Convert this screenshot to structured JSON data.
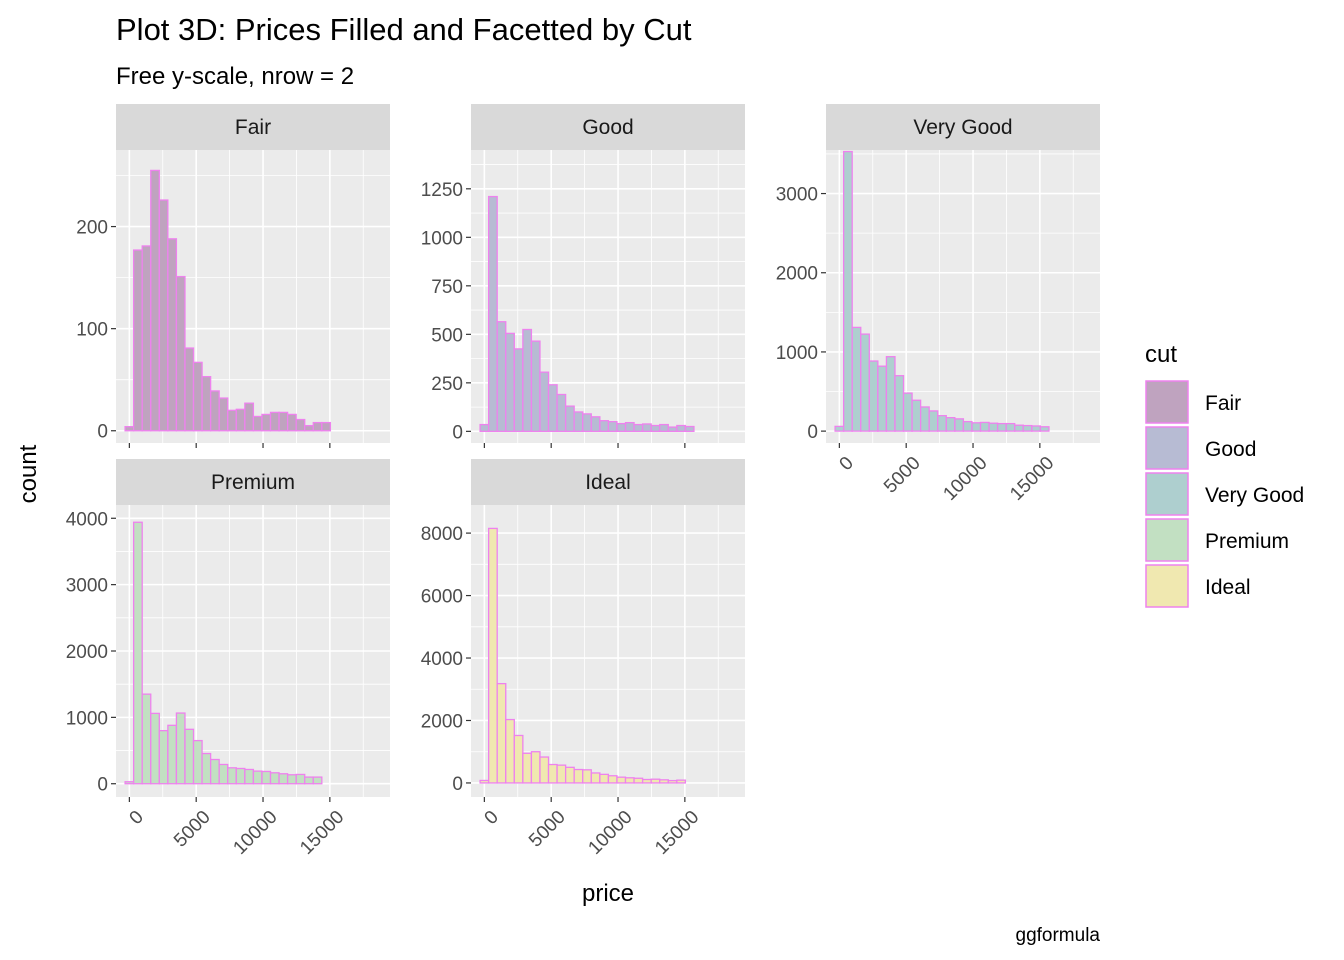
{
  "chart_data": {
    "type": "bar",
    "title": "Plot 3D: Prices Filled and Facetted by Cut",
    "subtitle": "Free y-scale, nrow = 2",
    "xlabel": "price",
    "ylabel": "count",
    "caption": "ggformula",
    "grid": true,
    "legend_position": "right",
    "bar_outline_color": "#ee82ee",
    "panel_background": "#ebebeb",
    "strip_background": "#d9d9d9",
    "xlim": [
      -1000,
      19500
    ],
    "x_ticks": [
      0,
      5000,
      10000,
      15000
    ],
    "x_tick_labels": [
      "0",
      "5000",
      "10000",
      "15000"
    ],
    "bin_centers": [
      0,
      640,
      1280,
      1920,
      2560,
      3200,
      3840,
      4480,
      5120,
      5760,
      6400,
      7040,
      7680,
      8320,
      8960,
      9600,
      10240,
      10880,
      11520,
      12160,
      12800,
      13440,
      14080,
      14720,
      15360,
      16000,
      16640,
      17280,
      17920,
      18560
    ],
    "legend": {
      "title": "cut",
      "entries": [
        {
          "label": "Fair",
          "color": "#bfa3bf"
        },
        {
          "label": "Good",
          "color": "#b7bbd3"
        },
        {
          "label": "Very Good",
          "color": "#aecfcf"
        },
        {
          "label": "Premium",
          "color": "#c2e0c2"
        },
        {
          "label": "Ideal",
          "color": "#f0e8b0"
        }
      ]
    },
    "panels": [
      {
        "name": "Fair",
        "color": "#bfa3bf",
        "ylim": [
          -12,
          275
        ],
        "y_ticks": [
          0,
          100,
          200
        ],
        "y_tick_labels": [
          "0",
          "100",
          "200"
        ],
        "values": [
          4,
          177,
          181,
          255,
          226,
          188,
          151,
          81,
          67,
          53,
          39,
          32,
          20,
          21,
          27,
          14,
          16,
          18,
          18,
          16,
          11,
          5,
          8,
          8,
          0,
          0,
          0,
          0,
          0,
          0
        ]
      },
      {
        "name": "Good",
        "color": "#b7bbd3",
        "ylim": [
          -60,
          1450
        ],
        "y_ticks": [
          0,
          250,
          500,
          750,
          1000,
          1250
        ],
        "y_tick_labels": [
          "0",
          "250",
          "500",
          "750",
          "1000",
          "1250"
        ],
        "values": [
          35,
          1210,
          565,
          505,
          425,
          525,
          465,
          305,
          240,
          190,
          130,
          100,
          90,
          75,
          55,
          50,
          40,
          45,
          35,
          38,
          30,
          35,
          22,
          30,
          25,
          0,
          0,
          0,
          0,
          0
        ]
      },
      {
        "name": "Very Good",
        "color": "#aecfcf",
        "ylim": [
          -150,
          3550
        ],
        "y_ticks": [
          0,
          1000,
          2000,
          3000
        ],
        "y_tick_labels": [
          "0",
          "1000",
          "2000",
          "3000"
        ],
        "values": [
          60,
          3530,
          1310,
          1225,
          885,
          820,
          940,
          700,
          480,
          390,
          305,
          255,
          195,
          170,
          155,
          120,
          105,
          110,
          100,
          95,
          95,
          75,
          70,
          65,
          55,
          0,
          0,
          0,
          0,
          0
        ]
      },
      {
        "name": "Premium",
        "color": "#c2e0c2",
        "ylim": [
          -200,
          4200
        ],
        "y_ticks": [
          0,
          1000,
          2000,
          3000,
          4000
        ],
        "y_tick_labels": [
          "0",
          "1000",
          "2000",
          "3000",
          "4000"
        ],
        "values": [
          30,
          3940,
          1350,
          1060,
          800,
          880,
          1065,
          820,
          650,
          455,
          365,
          290,
          240,
          230,
          215,
          190,
          185,
          165,
          150,
          135,
          140,
          100,
          100,
          0,
          0,
          0,
          0,
          0,
          0,
          0
        ]
      },
      {
        "name": "Ideal",
        "color": "#f0e8b0",
        "ylim": [
          -450,
          8900
        ],
        "y_ticks": [
          0,
          2000,
          4000,
          6000,
          8000
        ],
        "y_tick_labels": [
          "0",
          "2000",
          "4000",
          "6000",
          "8000"
        ],
        "values": [
          80,
          8150,
          3180,
          2030,
          1520,
          950,
          1000,
          830,
          590,
          570,
          500,
          430,
          420,
          320,
          275,
          230,
          185,
          165,
          150,
          110,
          120,
          100,
          75,
          90,
          0,
          0,
          0,
          0,
          0,
          0
        ]
      }
    ]
  }
}
